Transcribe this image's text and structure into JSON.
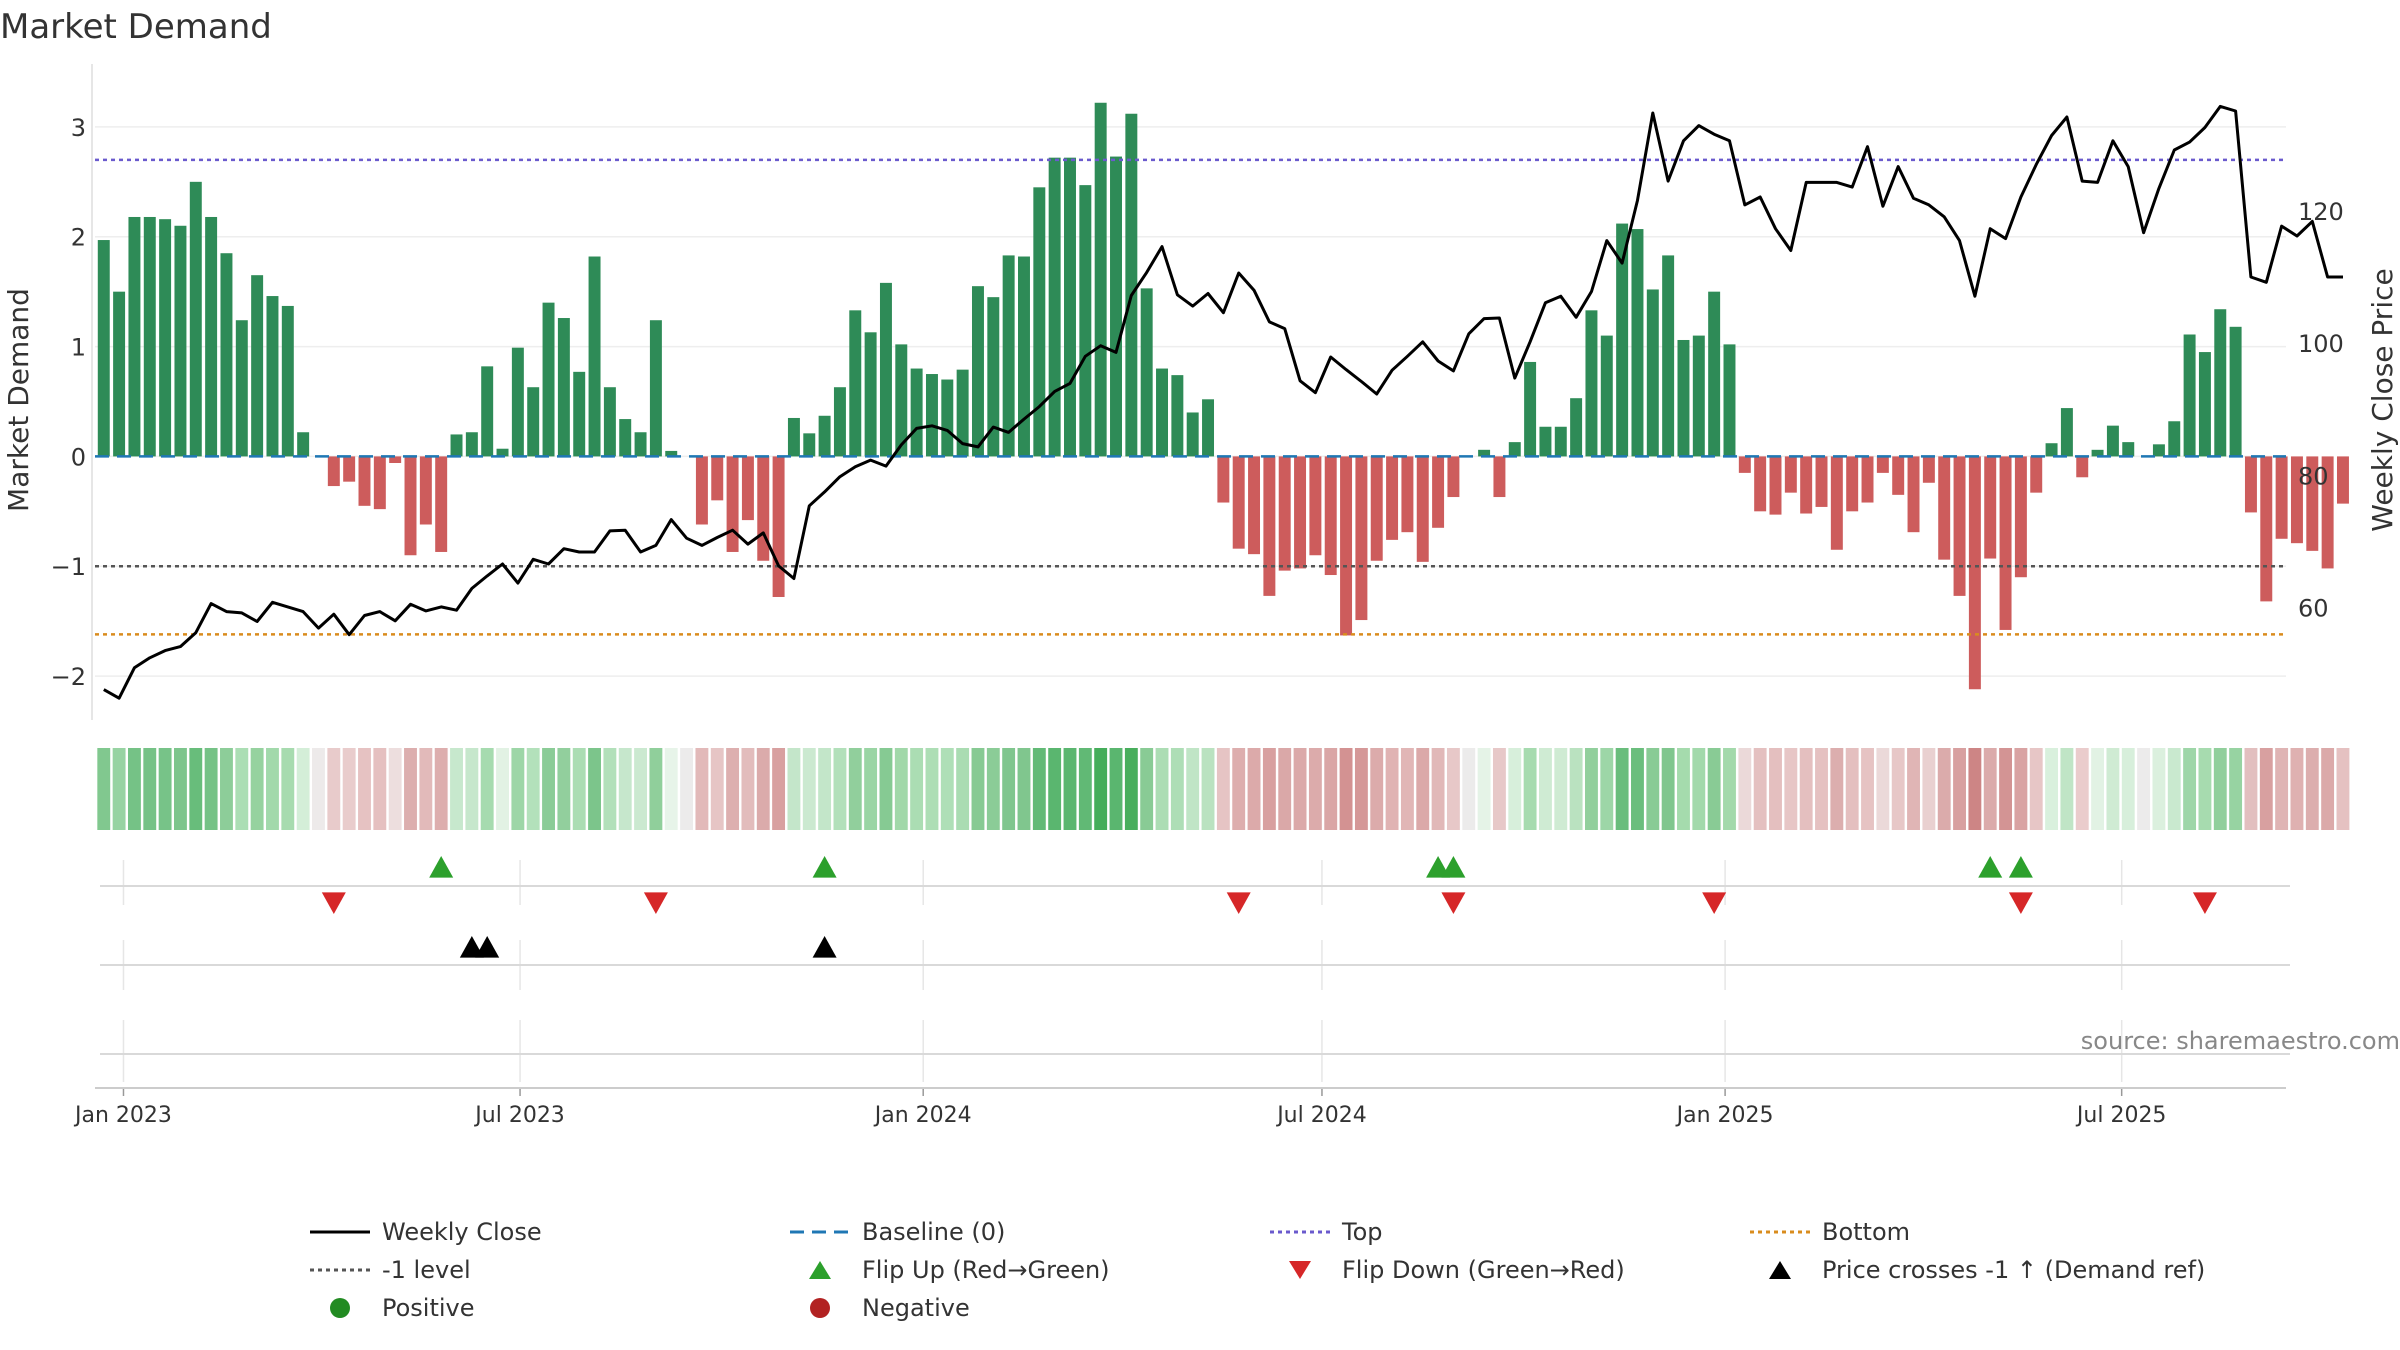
{
  "chart_data": {
    "type": "bar",
    "title": "Market Demand",
    "ylabel": "Market Demand",
    "y2label": "Weekly Close Price",
    "ylim": [
      -2.4,
      3.5
    ],
    "y2lim": [
      43,
      141
    ],
    "yticks": [
      -2,
      -1,
      0,
      1,
      2,
      3
    ],
    "y2ticks": [
      60,
      80,
      100,
      120
    ],
    "x_start": "2022-12-19",
    "x_end": "2025-09-14",
    "x_ticks": [
      {
        "date": "2023-01-01",
        "label": "Jan 2023"
      },
      {
        "date": "2023-07-01",
        "label": "Jul 2023"
      },
      {
        "date": "2024-01-01",
        "label": "Jan 2024"
      },
      {
        "date": "2024-07-01",
        "label": "Jul 2024"
      },
      {
        "date": "2025-01-01",
        "label": "Jan 2025"
      },
      {
        "date": "2025-07-01",
        "label": "Jul 2025"
      }
    ],
    "reference_lines": {
      "baseline": 0,
      "top": 2.7,
      "bottom": -1.62,
      "minus_one": -1
    },
    "week_start": "2022-12-23",
    "demand": [
      1.97,
      1.5,
      2.18,
      2.18,
      2.16,
      2.1,
      2.5,
      2.18,
      1.85,
      1.24,
      1.65,
      1.46,
      1.37,
      0.22,
      0,
      -0.27,
      -0.23,
      -0.45,
      -0.48,
      -0.06,
      -0.9,
      -0.62,
      -0.87,
      0.2,
      0.22,
      0.82,
      0.07,
      0.99,
      0.63,
      1.4,
      1.26,
      0.77,
      1.82,
      0.63,
      0.34,
      0.22,
      1.24,
      0.05,
      0,
      -0.62,
      -0.4,
      -0.87,
      -0.58,
      -0.95,
      -1.28,
      0.35,
      0.21,
      0.37,
      0.63,
      1.33,
      1.13,
      1.58,
      1.02,
      0.8,
      0.75,
      0.7,
      0.79,
      1.55,
      1.45,
      1.83,
      1.82,
      2.45,
      2.72,
      2.72,
      2.47,
      3.22,
      2.73,
      3.12,
      1.53,
      0.8,
      0.74,
      0.4,
      0.52,
      -0.42,
      -0.84,
      -0.89,
      -1.27,
      -1.04,
      -1.02,
      -0.9,
      -1.08,
      -1.63,
      -1.49,
      -0.95,
      -0.76,
      -0.69,
      -0.96,
      -0.65,
      -0.37,
      0,
      0.06,
      -0.37,
      0.13,
      0.86,
      0.27,
      0.27,
      0.53,
      1.33,
      1.1,
      2.12,
      2.07,
      1.52,
      1.83,
      1.06,
      1.1,
      1.5,
      1.02,
      -0.15,
      -0.5,
      -0.53,
      -0.33,
      -0.52,
      -0.46,
      -0.85,
      -0.5,
      -0.42,
      -0.15,
      -0.35,
      -0.69,
      -0.24,
      -0.94,
      -1.27,
      -2.12,
      -0.93,
      -1.58,
      -1.1,
      -0.33,
      0.12,
      0.44,
      -0.19,
      0.06,
      0.28,
      0.13,
      0,
      0.11,
      0.32,
      1.11,
      0.95,
      1.34,
      1.18,
      -0.51,
      -1.32,
      -0.75,
      -0.79,
      -0.86,
      -1.02,
      -0.43
    ],
    "price": [
      47.6,
      46.3,
      50.9,
      52.4,
      53.5,
      54.1,
      56.2,
      60.6,
      59.4,
      59.2,
      57.9,
      60.8,
      60.1,
      59.4,
      56.9,
      59.0,
      55.9,
      58.8,
      59.4,
      58.0,
      60.5,
      59.5,
      60.1,
      59.6,
      62.9,
      64.8,
      66.6,
      63.7,
      67.3,
      66.6,
      68.9,
      68.4,
      68.4,
      71.6,
      71.7,
      68.4,
      69.4,
      73.3,
      70.5,
      69.4,
      70.6,
      71.7,
      69.6,
      71.3,
      66.3,
      64.4,
      75.4,
      77.5,
      79.8,
      81.3,
      82.3,
      81.4,
      84.6,
      87.1,
      87.5,
      86.8,
      84.8,
      84.3,
      87.3,
      86.5,
      88.5,
      90.4,
      92.7,
      93.9,
      98.0,
      99.6,
      98.6,
      107.2,
      110.7,
      114.6,
      107.3,
      105.6,
      107.5,
      104.6,
      110.6,
      108.0,
      103.2,
      102.2,
      94.3,
      92.5,
      97.9,
      96.0,
      94.2,
      92.3,
      95.9,
      98.0,
      100.2,
      97.3,
      95.8,
      101.4,
      103.7,
      103.8,
      94.7,
      100.2,
      106.1,
      107.1,
      103.9,
      107.8,
      115.5,
      112.1,
      121.6,
      134.8,
      124.5,
      130.6,
      132.9,
      131.6,
      130.6,
      120.9,
      122.1,
      117.3,
      114.0,
      124.3,
      124.3,
      124.3,
      123.6,
      129.7,
      120.7,
      126.7,
      121.9,
      120.9,
      119.1,
      115.5,
      107.1,
      117.3,
      115.8,
      122.1,
      127.0,
      131.4,
      134.2,
      124.5,
      124.3,
      130.6,
      126.7,
      116.7,
      123.4,
      129.2,
      130.4,
      132.6,
      135.8,
      135.1,
      110.0,
      109.2,
      117.7,
      116.2,
      118.4,
      110.0,
      110.0
    ],
    "heat_colors": [
      "#81c88f",
      "#97d3a2",
      "#75c286",
      "#75c286",
      "#77c388",
      "#7dc58c",
      "#68bd7b",
      "#75c286",
      "#8dcd99",
      "#abdeb4",
      "#96d29f",
      "#a2d9ab",
      "#a7dbaf",
      "#d4eed8",
      "#edeaea",
      "#e8cbcb",
      "#e9cccc",
      "#e6c2c2",
      "#e5c0c0",
      "#eddede",
      "#dcaeae",
      "#e2baba",
      "#ddaeae",
      "#c7e8cd",
      "#c6e7cc",
      "#a6dbaf",
      "#e2f2e4",
      "#9dd6a7",
      "#b3e1bb",
      "#8bcc97",
      "#92cf9d",
      "#abddb3",
      "#7cc58b",
      "#b2e0ba",
      "#c6e7cc",
      "#cbe9d0",
      "#90cf9b",
      "#e7f4e9",
      "#ecebeb",
      "#e2b9b9",
      "#e6c5c5",
      "#ddafaf",
      "#e2bcbc",
      "#dbabab",
      "#d8a0a0",
      "#c4e6ca",
      "#cbe9d0",
      "#c3e6c9",
      "#b2e0ba",
      "#91cf9c",
      "#9ad5a4",
      "#86ca93",
      "#a1d8a9",
      "#abddb3",
      "#addeb5",
      "#afdfb7",
      "#aadcb2",
      "#87ca93",
      "#8bcc97",
      "#80c68e",
      "#80c68e",
      "#62ba76",
      "#5ab66f",
      "#5ab66f",
      "#61b975",
      "#45ad5a",
      "#5ab66f",
      "#48ae5c",
      "#89cb95",
      "#acddb4",
      "#aedeb6",
      "#c0e5c6",
      "#bae2c0",
      "#e6c4c4",
      "#ddaeae",
      "#dcaaaa",
      "#d8a0a0",
      "#daa8a8",
      "#dba9a9",
      "#dcabab",
      "#daa6a6",
      "#d39292",
      "#d59898",
      "#dcabab",
      "#e0b3b3",
      "#e1b6b6",
      "#dba9a9",
      "#e1b8b8",
      "#e7c8c8",
      "#ecebeb",
      "#e5f3e7",
      "#e7c8c8",
      "#d7efdb",
      "#a6dbaf",
      "#cfebd3",
      "#cfebd3",
      "#bae2c0",
      "#91cf9c",
      "#9dd6a7",
      "#69bd7c",
      "#6bbe7d",
      "#89cb95",
      "#80c68e",
      "#a5dbad",
      "#a2d9ab",
      "#89cb95",
      "#a3d9ab",
      "#ebd9d9",
      "#e4c0c0",
      "#e4bfbf",
      "#e7c6c6",
      "#e4bfbf",
      "#e5c1c1",
      "#dcaeae",
      "#e4bfbf",
      "#e6c3c3",
      "#ebd9d9",
      "#e7c7c7",
      "#e0b5b5",
      "#e9d0d0",
      "#dbabab",
      "#d8a0a0",
      "#cd8585",
      "#dbabab",
      "#d39494",
      "#d9a3a3",
      "#e7c6c6",
      "#d9f0dd",
      "#c0e5c6",
      "#eacccc",
      "#e2f2e4",
      "#cfebd3",
      "#d7efdb",
      "#ecebeb",
      "#dbf0de",
      "#c9e9cf",
      "#9ed6a8",
      "#a7dbaf",
      "#91cf9c",
      "#97d3a2",
      "#e2bfbf",
      "#d8a0a0",
      "#dfb4b4",
      "#dfb1b1",
      "#dcaeae",
      "#dba9a9",
      "#e5c1c1"
    ],
    "flip_up": [
      "2023-05-26",
      "2023-11-17",
      "2024-08-23",
      "2024-08-30",
      "2025-05-02",
      "2025-05-16"
    ],
    "flip_down": [
      "2023-04-07",
      "2023-09-01",
      "2024-05-24",
      "2024-08-30",
      "2024-12-27",
      "2025-05-16",
      "2025-08-08"
    ],
    "price_crosses": [
      "2023-06-09",
      "2023-06-16",
      "2023-11-17"
    ],
    "source": "source: sharemaestro.com",
    "legend": [
      {
        "label": "Weekly Close",
        "kind": "line",
        "color": "#000000"
      },
      {
        "label": "Baseline (0)",
        "kind": "dash",
        "color": "#1f77b4"
      },
      {
        "label": "Top",
        "kind": "dot",
        "color": "#6a5acd"
      },
      {
        "label": "Bottom",
        "kind": "dot",
        "color": "#d98c1e"
      },
      {
        "label": "-1 level",
        "kind": "dot",
        "color": "#555555"
      },
      {
        "label": "Flip Up (Red→Green)",
        "kind": "tri-up",
        "color": "#2ca02c"
      },
      {
        "label": "Flip Down (Green→Red)",
        "kind": "tri-down",
        "color": "#d62728"
      },
      {
        "label": "Price crosses -1 ↑ (Demand ref)",
        "kind": "tri-up",
        "color": "#000000"
      },
      {
        "label": "Positive",
        "kind": "circle",
        "color": "#228b22"
      },
      {
        "label": "Negative",
        "kind": "circle",
        "color": "#b22222"
      }
    ],
    "colors": {
      "positive_bar": "#2e8b57",
      "negative_bar": "#cd5c5c",
      "price_line": "#000000",
      "baseline": "#1f77b4",
      "top": "#6a5acd",
      "bottom": "#d98c1e",
      "minus_one": "#555555",
      "flip_up": "#2ca02c",
      "flip_down": "#d62728",
      "cross": "#000000"
    }
  }
}
